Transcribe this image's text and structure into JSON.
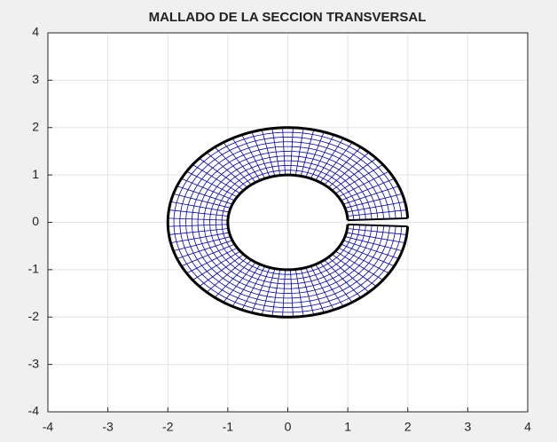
{
  "chart_data": {
    "type": "mesh",
    "title": "MALLADO DE LA SECCION TRANSVERSAL",
    "r": [
      1,
      1.1,
      1.2,
      1.3,
      1.4,
      1.5,
      1.6,
      1.7,
      1.8,
      1.9,
      2
    ],
    "theta_deg": [
      2.5,
      7.5,
      12.5,
      17.5,
      22.5,
      27.5,
      32.5,
      37.5,
      42.5,
      47.5,
      52.5,
      57.5,
      62.5,
      67.5,
      72.5,
      77.5,
      82.5,
      87.5,
      92.5,
      97.5,
      102.5,
      107.5,
      112.5,
      117.5,
      122.5,
      127.5,
      132.5,
      137.5,
      142.5,
      147.5,
      152.5,
      157.5,
      162.5,
      167.5,
      172.5,
      177.5,
      182.5,
      187.5,
      192.5,
      197.5,
      202.5,
      207.5,
      212.5,
      217.5,
      222.5,
      227.5,
      232.5,
      237.5,
      242.5,
      247.5,
      252.5,
      257.5,
      262.5,
      267.5,
      272.5,
      277.5,
      282.5,
      287.5,
      292.5,
      297.5,
      302.5,
      307.5,
      312.5,
      317.5,
      322.5,
      327.5,
      332.5,
      337.5,
      342.5,
      347.5,
      352.5,
      357.5
    ],
    "mesh_color": "#0000b0",
    "boundary_color": "#000000",
    "xlim": [
      -4,
      4
    ],
    "ylim": [
      -4,
      4
    ],
    "xticks": [
      -4,
      -3,
      -2,
      -1,
      0,
      1,
      2,
      3,
      4
    ],
    "yticks": [
      -4,
      -3,
      -2,
      -1,
      0,
      1,
      2,
      3,
      4
    ],
    "grid": true
  }
}
